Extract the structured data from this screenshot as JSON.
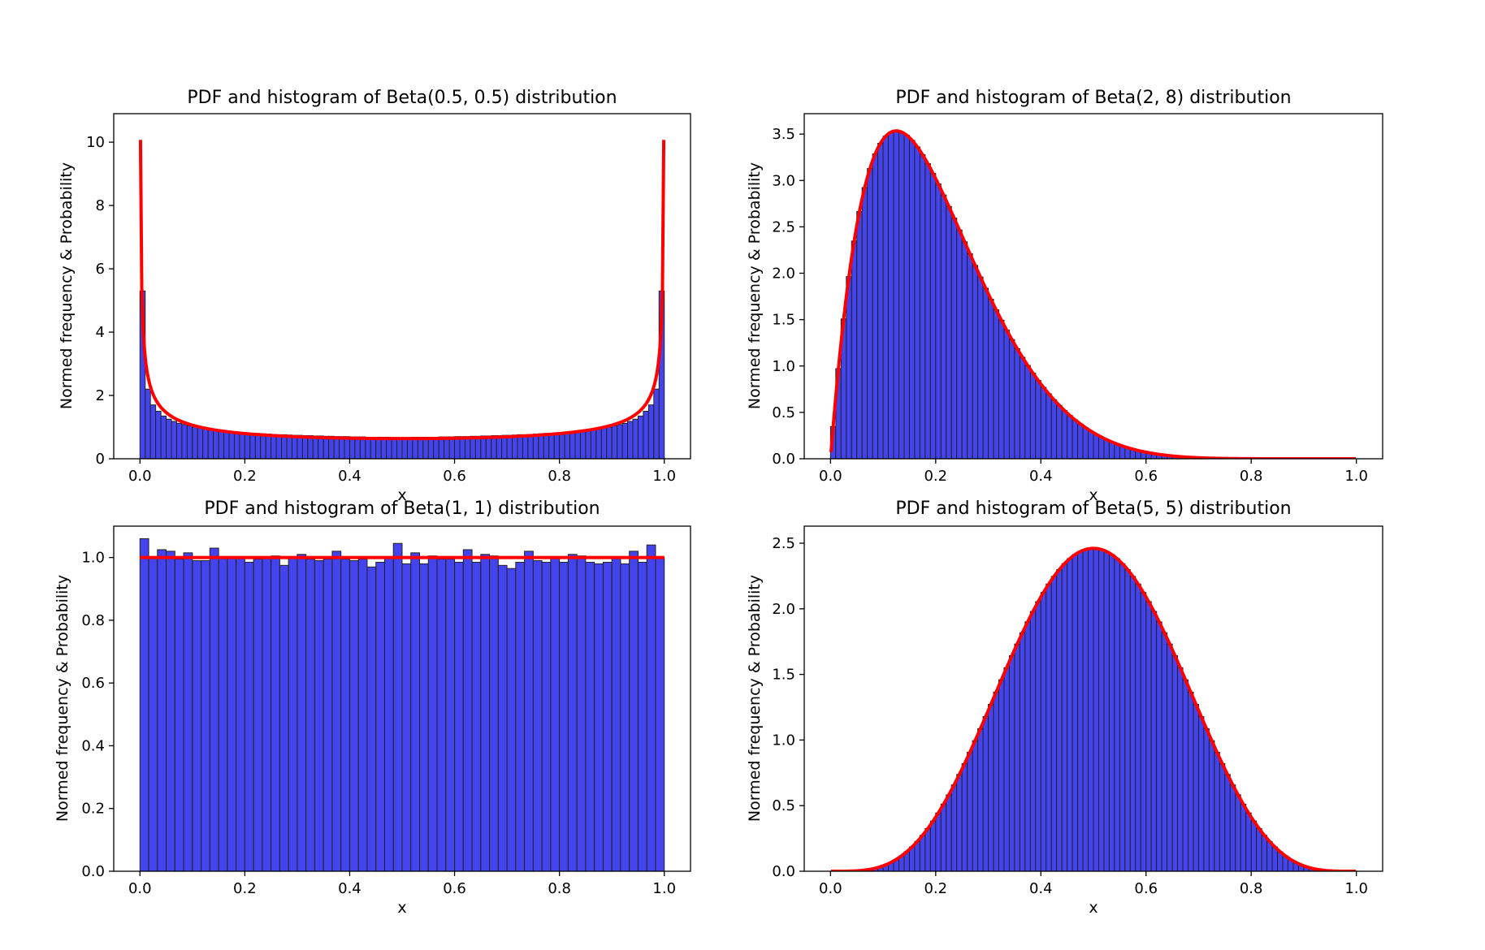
{
  "figure": {
    "subplots": [
      {
        "title": "PDF and histogram of Beta(0.5, 0.5) distribution",
        "xlabel": "x",
        "ylabel": "Normed frequency & Probability"
      },
      {
        "title": "PDF and histogram of Beta(2, 8) distribution",
        "xlabel": "x",
        "ylabel": "Normed frequency & Probability"
      },
      {
        "title": "PDF and histogram of Beta(1, 1) distribution",
        "xlabel": "x",
        "ylabel": "Normed frequency & Probability"
      },
      {
        "title": "PDF and histogram of Beta(5, 5) distribution",
        "xlabel": "x",
        "ylabel": "Normed frequency & Probability"
      }
    ]
  },
  "colors": {
    "histogram_fill": "#4444ee",
    "histogram_edge": "#222222",
    "pdf_line": "#ff0000"
  },
  "chart_data": [
    {
      "type": "bar",
      "title": "PDF and histogram of Beta(0.5, 0.5) distribution",
      "xlabel": "x",
      "ylabel": "Normed frequency & Probability",
      "xlim": [
        -0.05,
        1.05
      ],
      "ylim": [
        0,
        10.9
      ],
      "xticks": [
        0.0,
        0.2,
        0.4,
        0.6,
        0.8,
        1.0
      ],
      "xtick_labels": [
        "0.0",
        "0.2",
        "0.4",
        "0.6",
        "0.8",
        "1.0"
      ],
      "yticks": [
        0,
        2,
        4,
        6,
        8,
        10
      ],
      "ytick_labels": [
        "0",
        "2",
        "4",
        "6",
        "8",
        "10"
      ],
      "alpha": 0.5,
      "beta": 0.5,
      "bins": 100,
      "pdf_x_range": [
        0.001,
        0.999
      ],
      "grid": false,
      "series": [
        {
          "kind": "histogram",
          "values": [
            5.3,
            2.2,
            1.7,
            1.5,
            1.35,
            1.25,
            1.18,
            1.12,
            1.08,
            1.04,
            1.0,
            0.98,
            0.95,
            0.93,
            0.91,
            0.89,
            0.87,
            0.85,
            0.84,
            0.83,
            0.82,
            0.81,
            0.8,
            0.79,
            0.78,
            0.77,
            0.76,
            0.76,
            0.75,
            0.74,
            0.74,
            0.73,
            0.73,
            0.72,
            0.72,
            0.71,
            0.71,
            0.7,
            0.7,
            0.7,
            0.69,
            0.69,
            0.69,
            0.68,
            0.68,
            0.68,
            0.68,
            0.68,
            0.67,
            0.67,
            0.67,
            0.67,
            0.68,
            0.68,
            0.68,
            0.68,
            0.68,
            0.69,
            0.69,
            0.69,
            0.7,
            0.7,
            0.7,
            0.71,
            0.71,
            0.72,
            0.72,
            0.73,
            0.73,
            0.74,
            0.74,
            0.75,
            0.76,
            0.76,
            0.77,
            0.78,
            0.79,
            0.8,
            0.81,
            0.82,
            0.83,
            0.84,
            0.85,
            0.87,
            0.89,
            0.91,
            0.93,
            0.95,
            0.98,
            1.0,
            1.04,
            1.08,
            1.12,
            1.18,
            1.25,
            1.35,
            1.5,
            1.7,
            2.2,
            5.3
          ]
        },
        {
          "kind": "pdf",
          "formula": "beta.pdf(x, 0.5, 0.5)"
        }
      ]
    },
    {
      "type": "bar",
      "title": "PDF and histogram of Beta(2, 8) distribution",
      "xlabel": "x",
      "ylabel": "Normed frequency & Probability",
      "xlim": [
        -0.05,
        1.05
      ],
      "ylim": [
        0,
        3.72
      ],
      "xticks": [
        0.0,
        0.2,
        0.4,
        0.6,
        0.8,
        1.0
      ],
      "xtick_labels": [
        "0.0",
        "0.2",
        "0.4",
        "0.6",
        "0.8",
        "1.0"
      ],
      "yticks": [
        0.0,
        0.5,
        1.0,
        1.5,
        2.0,
        2.5,
        3.0,
        3.5
      ],
      "ytick_labels": [
        "0.0",
        "0.5",
        "1.0",
        "1.5",
        "2.0",
        "2.5",
        "3.0",
        "3.5"
      ],
      "alpha": 2,
      "beta": 8,
      "bins": 100,
      "hist_range": [
        0.0,
        1.0
      ],
      "pdf_x_range": [
        0.001,
        0.999
      ],
      "grid": false,
      "series": [
        {
          "kind": "histogram",
          "source": "beta.pdf(x, 2, 8) at bin centers",
          "noise_points": [
            [
              0.145,
              3.44
            ],
            [
              0.155,
              3.5
            ],
            [
              0.135,
              3.45
            ]
          ]
        },
        {
          "kind": "pdf",
          "formula": "beta.pdf(x, 2, 8)"
        }
      ]
    },
    {
      "type": "bar",
      "title": "PDF and histogram of Beta(1, 1) distribution",
      "xlabel": "x",
      "ylabel": "Normed frequency & Probability",
      "xlim": [
        -0.05,
        1.05
      ],
      "ylim": [
        0,
        1.1
      ],
      "xticks": [
        0.0,
        0.2,
        0.4,
        0.6,
        0.8,
        1.0
      ],
      "xtick_labels": [
        "0.0",
        "0.2",
        "0.4",
        "0.6",
        "0.8",
        "1.0"
      ],
      "yticks": [
        0.0,
        0.2,
        0.4,
        0.6,
        0.8,
        1.0
      ],
      "ytick_labels": [
        "0.0",
        "0.2",
        "0.4",
        "0.6",
        "0.8",
        "1.0"
      ],
      "alpha": 1,
      "beta": 1,
      "bins": 60,
      "grid": false,
      "series": [
        {
          "kind": "histogram",
          "values": [
            1.06,
            1.0,
            1.025,
            1.02,
            0.995,
            1.015,
            0.99,
            0.99,
            1.03,
            1.0,
            1.0,
            1.0,
            0.985,
            0.995,
            1.0,
            1.005,
            0.975,
            1.0,
            1.01,
            0.995,
            0.99,
            0.995,
            1.02,
            0.995,
            0.99,
            0.995,
            0.97,
            0.985,
            1.0,
            1.045,
            0.98,
            1.015,
            0.98,
            1.005,
            0.995,
            0.995,
            0.985,
            1.025,
            0.985,
            1.01,
            1.005,
            0.975,
            0.965,
            0.985,
            1.02,
            0.99,
            0.985,
            1.0,
            0.985,
            1.01,
            1.005,
            0.985,
            0.98,
            0.985,
            1.0,
            0.98,
            1.02,
            0.985,
            1.04,
            1.0
          ]
        },
        {
          "kind": "pdf",
          "formula": "beta.pdf(x, 1, 1)",
          "value": 1.0
        }
      ]
    },
    {
      "type": "bar",
      "title": "PDF and histogram of Beta(5, 5) distribution",
      "xlabel": "x",
      "ylabel": "Normed frequency & Probability",
      "xlim": [
        -0.05,
        1.05
      ],
      "ylim": [
        0,
        2.63
      ],
      "xticks": [
        0.0,
        0.2,
        0.4,
        0.6,
        0.8,
        1.0
      ],
      "xtick_labels": [
        "0.0",
        "0.2",
        "0.4",
        "0.6",
        "0.8",
        "1.0"
      ],
      "yticks": [
        0.0,
        0.5,
        1.0,
        1.5,
        2.0,
        2.5
      ],
      "ytick_labels": [
        "0.0",
        "0.5",
        "1.0",
        "1.5",
        "2.0",
        "2.5"
      ],
      "alpha": 5,
      "beta": 5,
      "bins": 100,
      "hist_range": [
        0.0,
        1.0
      ],
      "pdf_x_range": [
        0.001,
        0.999
      ],
      "grid": false,
      "series": [
        {
          "kind": "histogram",
          "source": "beta.pdf(x, 5, 5) at bin centers"
        },
        {
          "kind": "pdf",
          "formula": "beta.pdf(x, 5, 5)"
        }
      ]
    }
  ]
}
